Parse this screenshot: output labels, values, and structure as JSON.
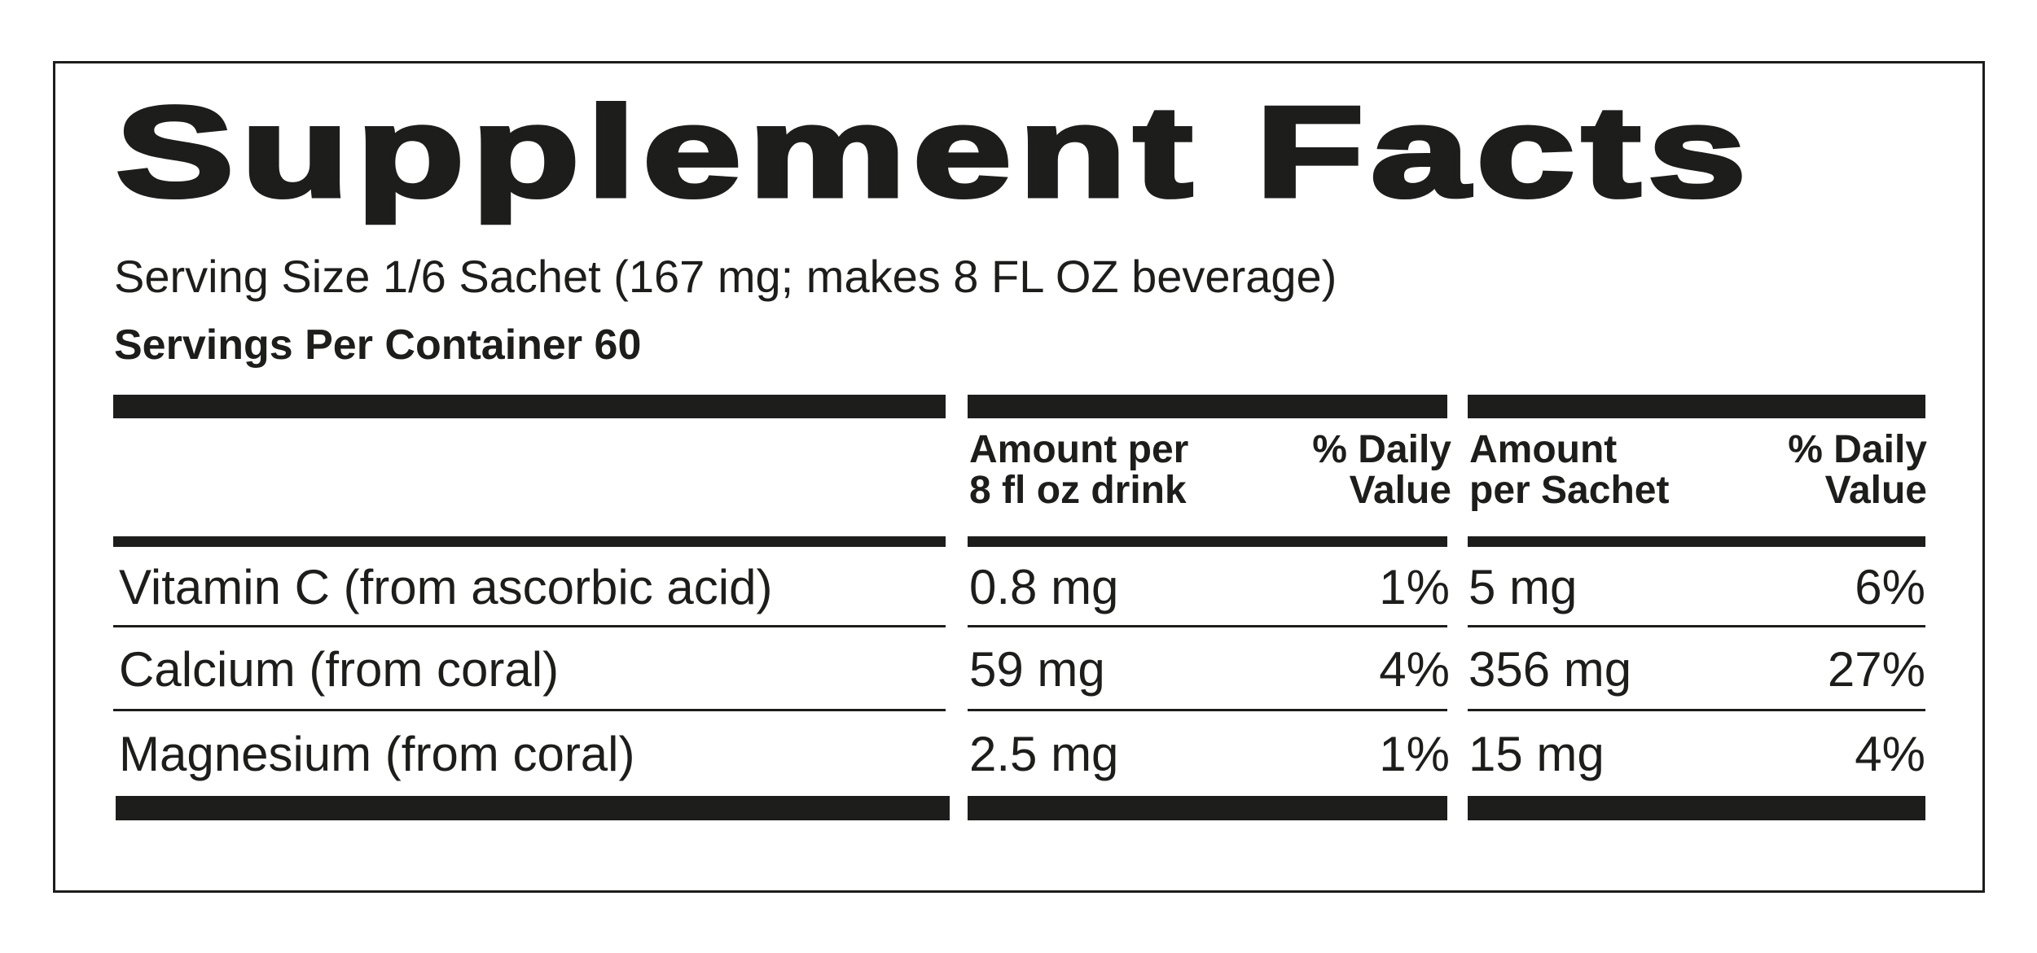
{
  "title": "Supplement Facts",
  "serving_size": "Serving Size 1/6 Sachet (167 mg; makes 8 FL OZ beverage)",
  "servings_per_container": "Servings Per Container 60",
  "headers": {
    "amount_drink": [
      "Amount per",
      "8 fl oz drink"
    ],
    "dv_drink": [
      "% Daily",
      "Value"
    ],
    "amount_sachet": [
      "Amount",
      "per Sachet"
    ],
    "dv_sachet": [
      "% Daily",
      "Value"
    ]
  },
  "rows": [
    {
      "nutrient": "Vitamin C (from ascorbic acid)",
      "amount_drink": "0.8 mg",
      "dv_drink": "1%",
      "amount_sachet": "5 mg",
      "dv_sachet": "6%"
    },
    {
      "nutrient": "Calcium (from coral)",
      "amount_drink": "59 mg",
      "dv_drink": "4%",
      "amount_sachet": "356 mg",
      "dv_sachet": "27%"
    },
    {
      "nutrient": "Magnesium (from coral)",
      "amount_drink": "2.5 mg",
      "dv_drink": "1%",
      "amount_sachet": "15 mg",
      "dv_sachet": "4%"
    }
  ]
}
